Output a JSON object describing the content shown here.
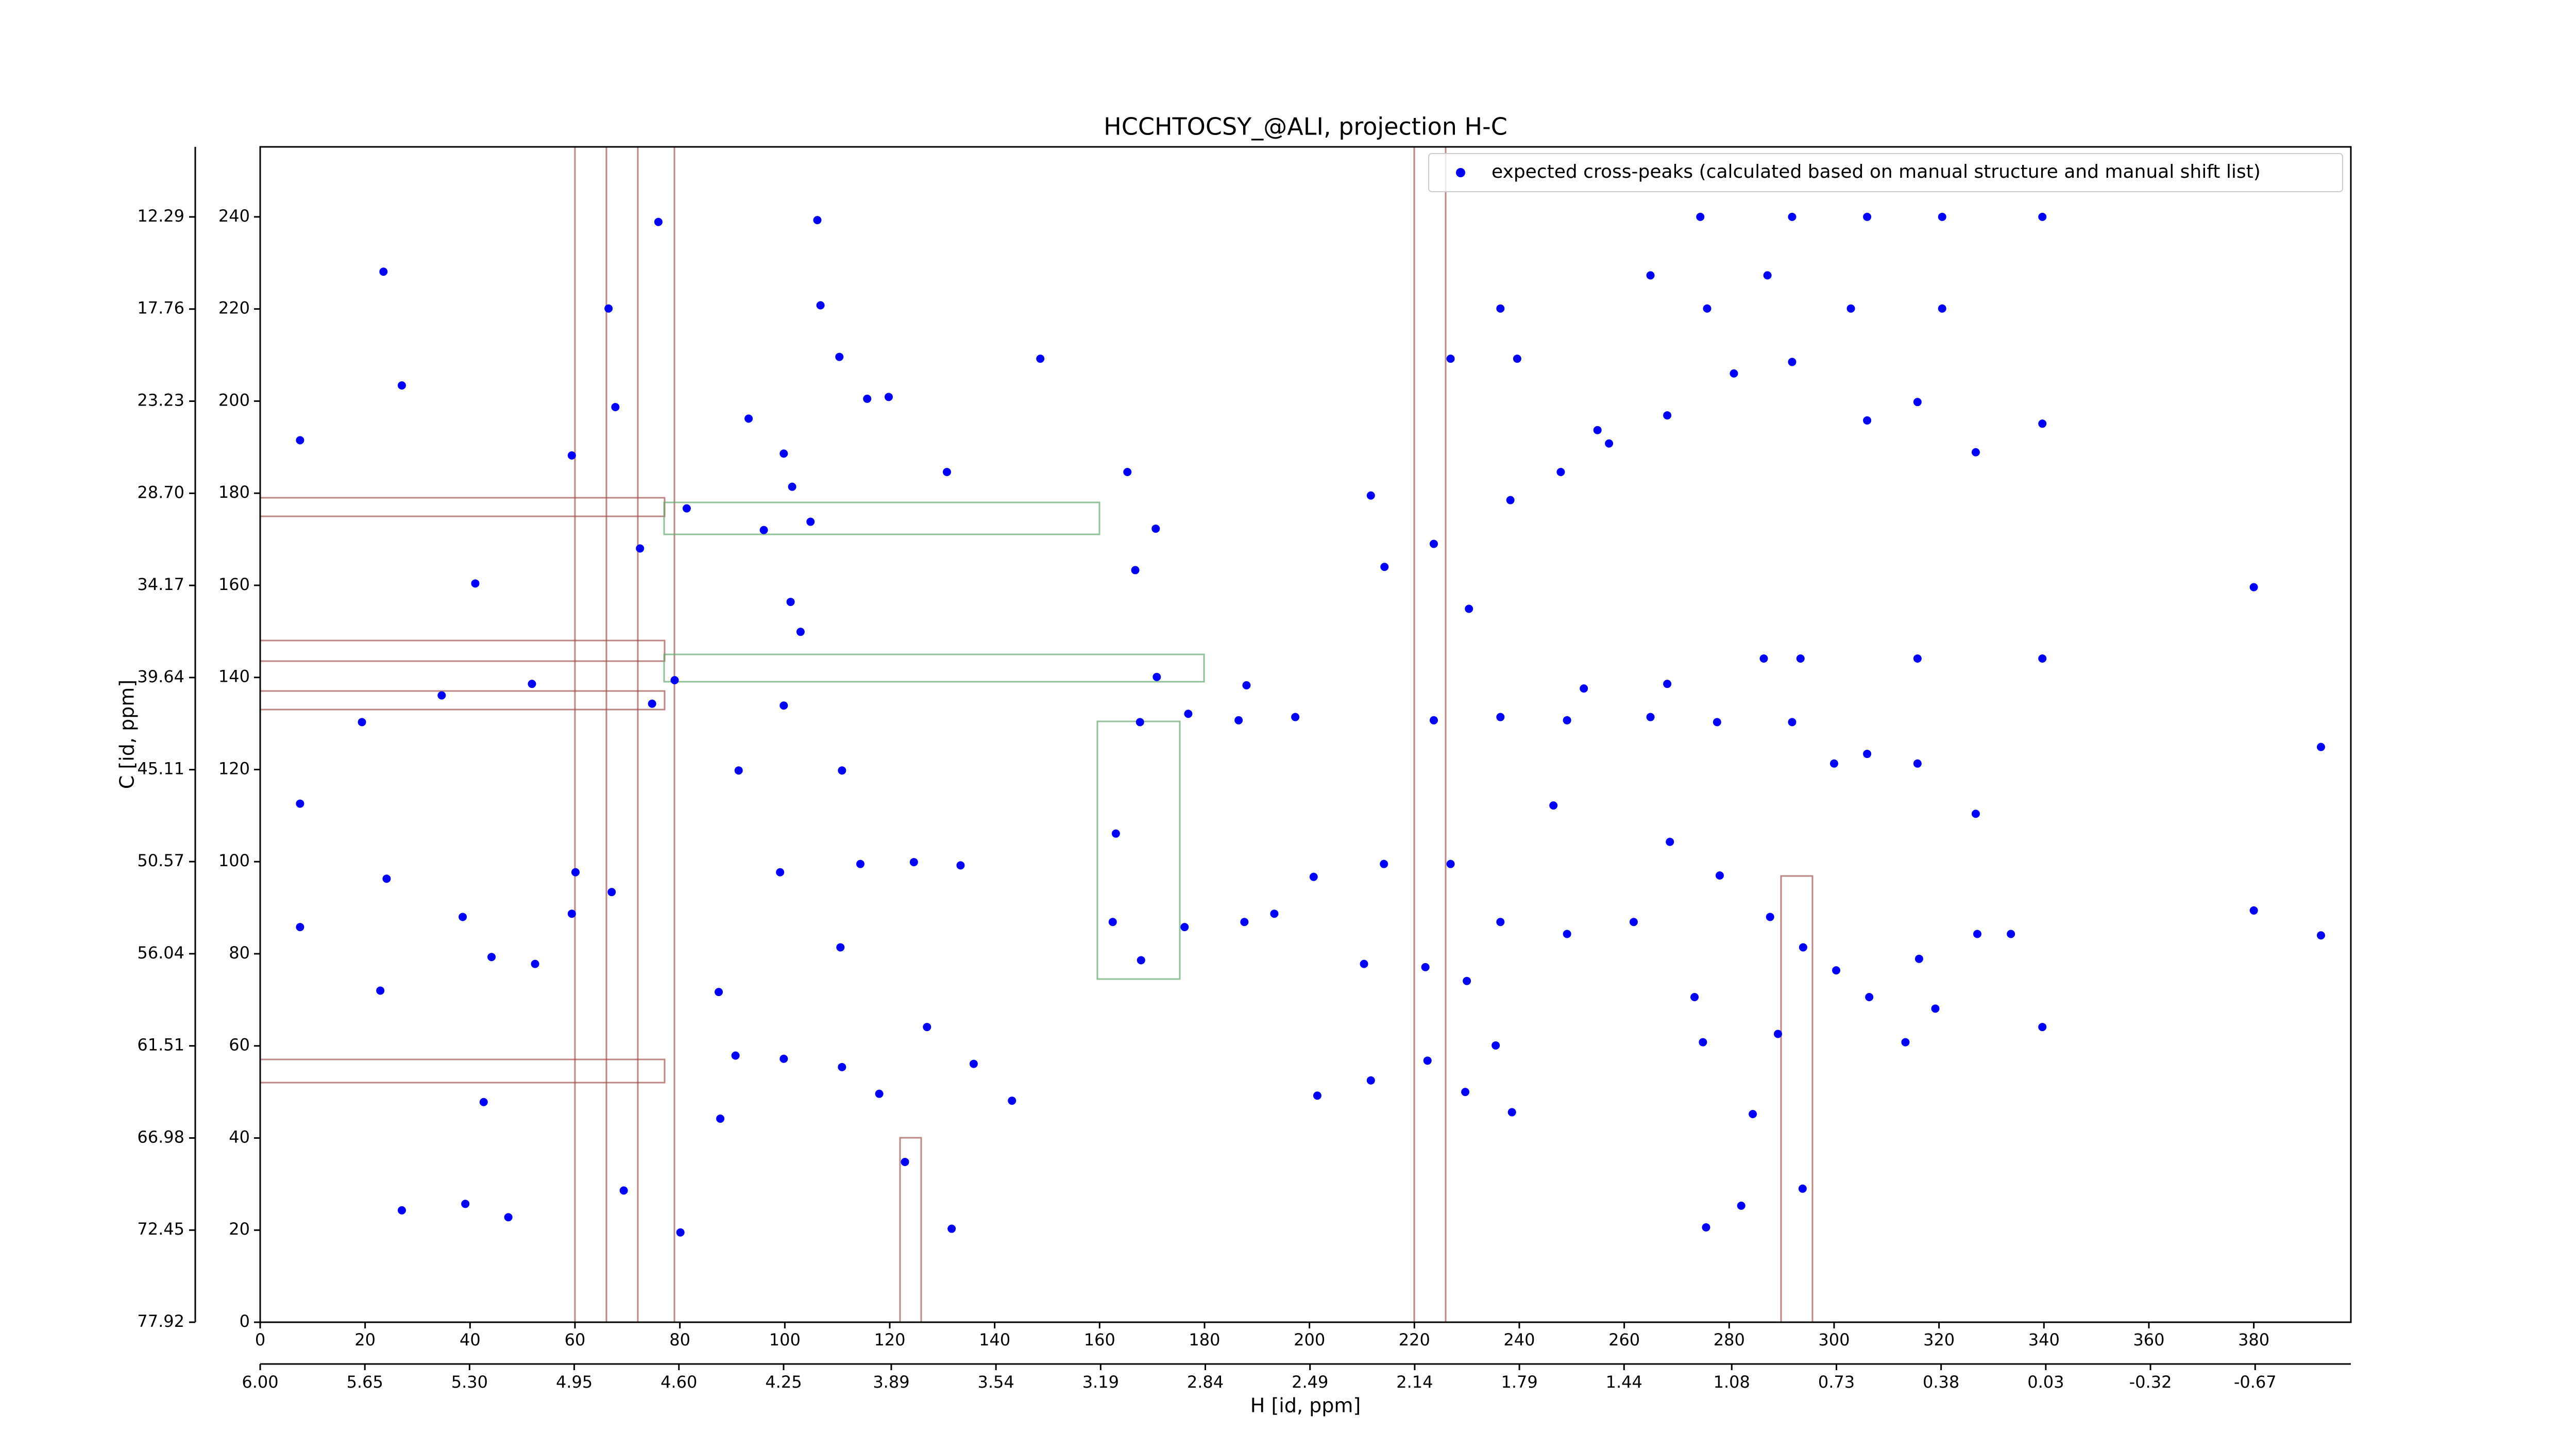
{
  "chart_data": {
    "type": "scatter",
    "title": "HCCHTOCSY_@ALI, projection H-C",
    "xlabel": "H [id, ppm]",
    "ylabel": "C [id, ppm]",
    "xlim": [
      0,
      398.5
    ],
    "ylim": [
      0,
      255.2
    ],
    "xticks": [
      0,
      20,
      40,
      60,
      80,
      100,
      120,
      140,
      160,
      180,
      200,
      220,
      240,
      260,
      280,
      300,
      320,
      340,
      360,
      380
    ],
    "yticks": [
      0,
      20,
      40,
      60,
      80,
      100,
      120,
      140,
      160,
      180,
      200,
      220,
      240
    ],
    "x2lim": [
      6.0,
      -0.99
    ],
    "x2ticks": [
      {
        "value": 6.0,
        "label": "6.00"
      },
      5.65,
      {
        "value": 5.3,
        "label": "5.30"
      },
      4.95,
      {
        "value": 4.6,
        "label": "4.60"
      },
      4.25,
      3.89,
      3.54,
      3.19,
      2.84,
      2.49,
      2.14,
      1.79,
      1.44,
      1.08,
      0.73,
      0.38,
      0.03,
      -0.32,
      -0.67
    ],
    "y2lim": [
      77.92,
      8.13
    ],
    "y2ticks": [
      77.92,
      72.45,
      66.98,
      61.51,
      56.04,
      50.57,
      45.11,
      39.64,
      34.17,
      {
        "value": 28.7,
        "label": "28.70"
      },
      23.23,
      17.76,
      12.29
    ],
    "legend": "upper right",
    "series": [
      {
        "name": "expected cross-peaks (calculated based on manual structure and manual shift list)",
        "color": "#0000ff",
        "x": [
          23.5,
          27,
          7.6,
          7.6,
          7.6,
          24.1,
          22.9,
          27,
          39.1,
          47.3,
          42.6,
          38.6,
          44.1,
          52.4,
          60.1,
          59.4,
          67,
          75.9,
          66.4,
          67.7,
          81.3,
          72.4,
          79,
          74.7,
          51.8,
          34.6,
          19.4,
          41,
          59.4,
          93.1,
          99.8,
          106.2,
          106.8,
          110.4,
          115.7,
          101.4,
          96,
          104.9,
          101.1,
          103,
          99.8,
          91.2,
          110.9,
          99.1,
          114.4,
          124.6,
          133.5,
          110.6,
          87.4,
          90.6,
          99.8,
          110.9,
          118,
          127.1,
          136,
          143.3,
          122.9,
          131.8,
          69.3,
          80.1,
          87.7,
          130.9,
          119.8,
          148.7,
          165.3,
          170.7,
          166.8,
          170.9,
          167.7,
          176.9,
          188,
          186.5,
          197.3,
          200.8,
          163.1,
          162.5,
          167.9,
          176.2,
          187.6,
          193.3,
          201.5,
          211.7,
          222.5,
          235.5,
          238.6,
          229.7,
          211.7,
          214.3,
          223.7,
          230.4,
          238.3,
          247.9,
          257.1,
          268.2,
          280.9,
          292,
          306.3,
          315.9,
          327,
          339.7,
          339.7,
          320.6,
          306.3,
          292,
          274.5,
          265,
          287.3,
          303.2,
          320.6,
          275.8,
          236.4,
          226.9,
          239.6,
          254.9,
          339.7,
          315.9,
          293.6,
          380,
          392.8,
          380,
          392.8,
          339.7,
          327,
          315.9,
          306.3,
          300,
          292,
          277.7,
          265,
          249.1,
          236.4,
          223.7,
          246.5,
          268.7,
          278.2,
          287.8,
          294.1,
          300.4,
          306.7,
          316.2,
          327.3,
          333.7,
          319.3,
          313.6,
          289.3,
          275,
          273.4,
          284.5,
          294,
          282.3,
          275.6,
          236.4,
          249.1,
          261.8,
          222.1,
          210.4,
          230,
          214.2,
          226.9,
          252.3,
          268.2,
          286.6
        ],
        "y": [
          228.1,
          203.4,
          191.5,
          112.6,
          85.8,
          96.3,
          72,
          24.3,
          25.7,
          22.8,
          47.8,
          88,
          79.3,
          77.8,
          97.7,
          88.7,
          93.4,
          238.9,
          220.1,
          198.7,
          176.7,
          168,
          139.4,
          134.3,
          138.6,
          136.1,
          130.3,
          160.4,
          188.2,
          196.2,
          188.6,
          239.3,
          220.8,
          209.6,
          200.5,
          181.4,
          172,
          173.8,
          156.4,
          149.9,
          133.9,
          119.8,
          119.8,
          97.7,
          99.5,
          99.9,
          99.2,
          81.4,
          71.7,
          57.9,
          57.2,
          55.4,
          49.6,
          64.1,
          56.1,
          48.1,
          34.8,
          20.3,
          28.6,
          19.5,
          44.2,
          184.6,
          200.9,
          209.2,
          184.6,
          172.3,
          163.3,
          140.1,
          130.3,
          132.1,
          138.3,
          130.7,
          131.4,
          96.7,
          106.1,
          86.9,
          78.6,
          85.8,
          86.9,
          88.7,
          49.2,
          52.5,
          56.8,
          60.1,
          45.6,
          50,
          179.5,
          164,
          169,
          154.9,
          178.5,
          184.6,
          190.8,
          196.9,
          206,
          208.5,
          195.8,
          199.8,
          188.9,
          195.1,
          240,
          240,
          240,
          240,
          240,
          227.3,
          227.3,
          220.1,
          220.1,
          220.1,
          220.1,
          209.2,
          209.2,
          193.7,
          144.1,
          144.1,
          144.1,
          159.6,
          124.9,
          89.4,
          84,
          64.1,
          110.4,
          121.3,
          123.4,
          121.3,
          130.3,
          130.3,
          131.4,
          130.7,
          131.4,
          130.7,
          112.2,
          104.3,
          97,
          88,
          81.4,
          76.4,
          70.6,
          78.9,
          84.3,
          84.3,
          68.1,
          60.8,
          62.6,
          60.8,
          70.6,
          45.2,
          29,
          25.3,
          20.6,
          86.9,
          84.3,
          86.9,
          77.1,
          77.8,
          74.1,
          99.5,
          99.5,
          137.6,
          138.6,
          144.1
        ]
      }
    ]
  }
}
